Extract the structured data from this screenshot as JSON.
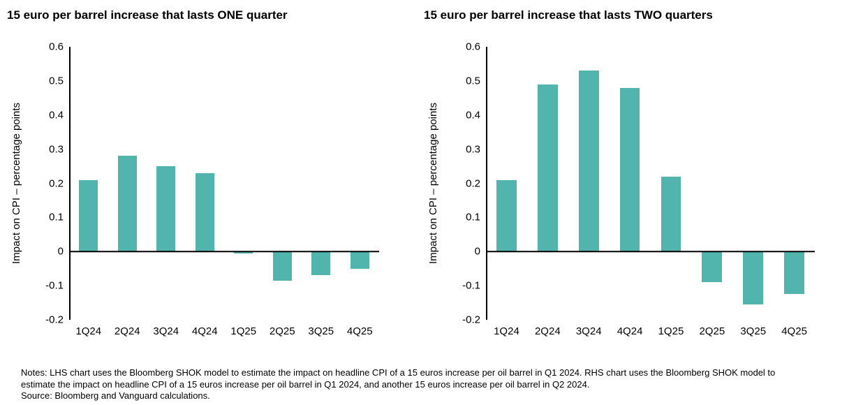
{
  "chart_data": [
    {
      "type": "bar",
      "title": "15 euro per barrel increase that lasts ONE quarter",
      "ylabel": "Impact on CPI – percentage points",
      "xlabel": "",
      "categories": [
        "1Q24",
        "2Q24",
        "3Q24",
        "4Q24",
        "1Q25",
        "2Q25",
        "3Q25",
        "4Q25"
      ],
      "values": [
        0.21,
        0.28,
        0.25,
        0.23,
        -0.005,
        -0.085,
        -0.07,
        -0.05
      ],
      "ylim": [
        -0.2,
        0.6
      ],
      "yticks": [
        0.6,
        0.5,
        0.4,
        0.3,
        0.2,
        0.1,
        0,
        -0.1,
        -0.2
      ],
      "bar_color": "#52b5ad",
      "grid": false,
      "legend_position": "none"
    },
    {
      "type": "bar",
      "title": "15 euro per barrel increase that lasts TWO quarters",
      "ylabel": "Impact on CPI – percentage points",
      "xlabel": "",
      "categories": [
        "1Q24",
        "2Q24",
        "3Q24",
        "4Q24",
        "1Q25",
        "2Q25",
        "3Q25",
        "4Q25"
      ],
      "values": [
        0.21,
        0.49,
        0.53,
        0.48,
        0.22,
        -0.09,
        -0.155,
        -0.125
      ],
      "ylim": [
        -0.2,
        0.6
      ],
      "yticks": [
        0.6,
        0.5,
        0.4,
        0.3,
        0.2,
        0.1,
        0,
        -0.1,
        -0.2
      ],
      "bar_color": "#52b5ad",
      "grid": false,
      "legend_position": "none"
    }
  ],
  "notes": {
    "lines": [
      "Notes: LHS chart uses the Bloomberg SHOK model to estimate the impact on headline CPI of a 15 euros increase per oil barrel in Q1 2024. RHS chart uses the Bloomberg SHOK model to",
      "estimate the impact on headline CPI of a 15 euros increase per oil barrel in Q1 2024, and another 15 euros increase per oil barrel in Q2 2024.",
      "Source: Bloomberg and Vanguard calculations."
    ]
  }
}
